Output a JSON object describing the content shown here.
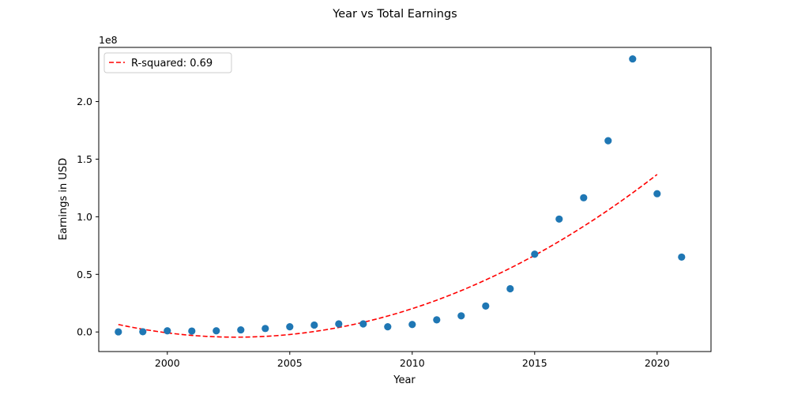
{
  "chart_data": {
    "type": "scatter",
    "title": "Year vs Total Earnings",
    "xlabel": "Year",
    "ylabel": "Earnings in USD",
    "y_offset_label": "1e8",
    "xlim": [
      1997.2,
      2022.2
    ],
    "ylim": [
      -0.17,
      2.47
    ],
    "y_unit": "1e8 USD",
    "xticks": [
      2000,
      2005,
      2010,
      2015,
      2020
    ],
    "xtick_labels": [
      "2000",
      "2005",
      "2010",
      "2015",
      "2020"
    ],
    "yticks": [
      0.0,
      0.5,
      1.0,
      1.5,
      2.0
    ],
    "ytick_labels": [
      "0.0",
      "0.5",
      "1.0",
      "1.5",
      "2.0"
    ],
    "grid": false,
    "legend_position": "top-left",
    "series": [
      {
        "name": "Total Earnings",
        "kind": "scatter",
        "color": "#1f77b4",
        "x": [
          1998,
          1999,
          2000,
          2001,
          2002,
          2003,
          2004,
          2005,
          2006,
          2007,
          2008,
          2009,
          2010,
          2011,
          2012,
          2013,
          2014,
          2015,
          2016,
          2017,
          2018,
          2019,
          2020,
          2021
        ],
        "values": [
          0.001,
          0.002,
          0.01,
          0.008,
          0.01,
          0.018,
          0.03,
          0.045,
          0.06,
          0.07,
          0.07,
          0.045,
          0.065,
          0.105,
          0.14,
          0.225,
          0.375,
          0.675,
          0.98,
          1.165,
          1.66,
          2.37,
          1.2,
          0.65
        ]
      },
      {
        "name": "R-squared: 0.69",
        "kind": "fit",
        "color": "#ff0000",
        "dash": "dashed",
        "quadratic_vertex_year": 2002.8,
        "quadratic_vertex_value": -0.045,
        "quadratic_a": 0.004773,
        "x_range": [
          1998,
          2020
        ]
      }
    ]
  }
}
